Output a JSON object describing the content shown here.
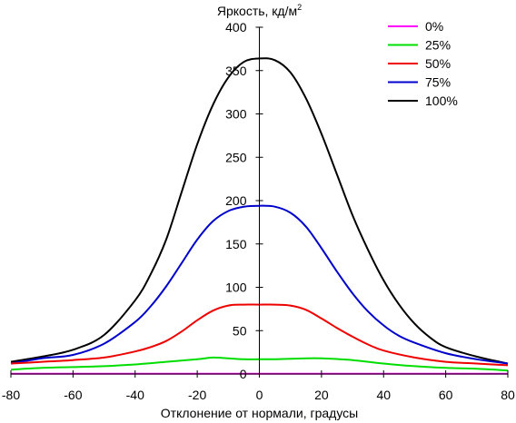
{
  "chart_data": {
    "type": "line",
    "ylabel": "Яркость, кд/м",
    "ylabel_superscript": "2",
    "xlabel": "Отклонение от нормали, градусы",
    "xlim": [
      -80,
      80
    ],
    "ylim": [
      0,
      400
    ],
    "x_ticks": [
      -80,
      -60,
      -40,
      -20,
      0,
      20,
      40,
      60,
      80
    ],
    "y_ticks": [
      0,
      50,
      100,
      150,
      200,
      250,
      300,
      350,
      400
    ],
    "grid": false,
    "legend_position": "top-right",
    "series": [
      {
        "name": "0%",
        "color": "#ff00ff",
        "x": [
          -80,
          -60,
          -40,
          -20,
          0,
          20,
          40,
          60,
          80
        ],
        "y": [
          0.3,
          0.3,
          0.3,
          0.3,
          0.3,
          0.3,
          0.3,
          0.3,
          0.3
        ]
      },
      {
        "name": "25%",
        "color": "#00dd00",
        "x": [
          -80,
          -70,
          -60,
          -50,
          -40,
          -30,
          -20,
          -15,
          -10,
          -5,
          0,
          5,
          10,
          15,
          20,
          30,
          40,
          50,
          60,
          70,
          80
        ],
        "y": [
          5,
          7,
          8,
          9,
          11,
          14,
          17,
          19,
          18,
          17,
          17,
          17,
          17.5,
          18,
          18,
          16,
          12,
          9,
          7,
          6,
          4
        ]
      },
      {
        "name": "50%",
        "color": "#ee0000",
        "x": [
          -80,
          -70,
          -60,
          -50,
          -40,
          -35,
          -30,
          -25,
          -20,
          -15,
          -10,
          -5,
          0,
          5,
          10,
          15,
          20,
          25,
          30,
          35,
          40,
          50,
          60,
          70,
          80
        ],
        "y": [
          12,
          14,
          16,
          19,
          26,
          31,
          38,
          49,
          62,
          73,
          79,
          80,
          80,
          80,
          79,
          74,
          64,
          53,
          43,
          34,
          27,
          19,
          14,
          12,
          10
        ]
      },
      {
        "name": "75%",
        "color": "#0000cc",
        "x": [
          -80,
          -70,
          -60,
          -50,
          -40,
          -35,
          -30,
          -25,
          -20,
          -15,
          -10,
          -5,
          0,
          5,
          10,
          15,
          20,
          25,
          30,
          35,
          40,
          45,
          50,
          60,
          70,
          80
        ],
        "y": [
          12,
          18,
          22,
          35,
          60,
          78,
          101,
          128,
          155,
          176,
          188,
          193,
          194,
          193,
          186,
          170,
          145,
          118,
          93,
          72,
          56,
          44,
          36,
          24,
          17,
          12
        ]
      },
      {
        "name": "100%",
        "color": "#000000",
        "x": [
          -80,
          -70,
          -60,
          -50,
          -40,
          -35,
          -30,
          -25,
          -20,
          -15,
          -10,
          -5,
          0,
          5,
          10,
          15,
          20,
          25,
          30,
          35,
          40,
          45,
          50,
          55,
          60,
          70,
          80
        ],
        "y": [
          14,
          20,
          28,
          45,
          85,
          115,
          155,
          210,
          265,
          310,
          342,
          360,
          364,
          362,
          348,
          318,
          277,
          230,
          183,
          143,
          108,
          80,
          58,
          42,
          31,
          20,
          12
        ]
      }
    ]
  }
}
